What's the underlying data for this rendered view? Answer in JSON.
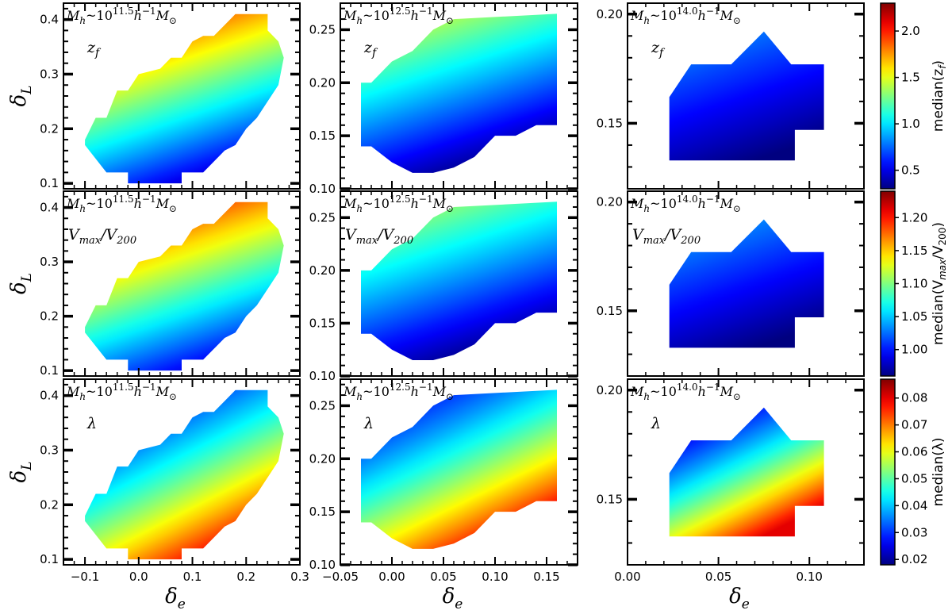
{
  "chart_data": {
    "type": "heatmap",
    "grid_rows": 3,
    "grid_cols": 3,
    "columns": [
      {
        "mass_label_prefix": "M",
        "mass_label_sub": "h",
        "mass_label_mid": "~10",
        "mass_label_exp": "11.5",
        "mass_label_unit": "h",
        "mass_label_unit_exp": "−1",
        "mass_label_sun": "M",
        "mass_label_sun_sub": "⊙",
        "xlim": [
          -0.14,
          0.3
        ],
        "ylim": [
          0.09,
          0.43
        ],
        "xticks": [
          -0.1,
          0.0,
          0.1,
          0.2,
          0.3
        ],
        "xtick_labels": [
          "−0.1",
          "0.0",
          "0.1",
          "0.2",
          "0.3"
        ],
        "yticks": [
          0.1,
          0.2,
          0.3,
          0.4
        ],
        "ytick_labels": [
          "0.1",
          "0.2",
          "0.3",
          "0.4"
        ],
        "region": [
          [
            -0.1,
            0.18
          ],
          [
            -0.08,
            0.22
          ],
          [
            -0.06,
            0.22
          ],
          [
            -0.04,
            0.27
          ],
          [
            -0.02,
            0.27
          ],
          [
            0.0,
            0.3
          ],
          [
            0.04,
            0.31
          ],
          [
            0.06,
            0.33
          ],
          [
            0.08,
            0.33
          ],
          [
            0.1,
            0.36
          ],
          [
            0.12,
            0.37
          ],
          [
            0.14,
            0.37
          ],
          [
            0.16,
            0.39
          ],
          [
            0.18,
            0.41
          ],
          [
            0.24,
            0.41
          ],
          [
            0.24,
            0.38
          ],
          [
            0.26,
            0.36
          ],
          [
            0.27,
            0.33
          ],
          [
            0.26,
            0.28
          ],
          [
            0.22,
            0.22
          ],
          [
            0.2,
            0.2
          ],
          [
            0.18,
            0.17
          ],
          [
            0.16,
            0.16
          ],
          [
            0.14,
            0.14
          ],
          [
            0.12,
            0.12
          ],
          [
            0.1,
            0.12
          ],
          [
            0.08,
            0.12
          ],
          [
            0.08,
            0.1
          ],
          [
            -0.02,
            0.1
          ],
          [
            -0.02,
            0.12
          ],
          [
            -0.06,
            0.12
          ],
          [
            -0.1,
            0.17
          ]
        ]
      },
      {
        "mass_label_prefix": "M",
        "mass_label_sub": "h",
        "mass_label_mid": "~10",
        "mass_label_exp": "12.5",
        "mass_label_unit": "h",
        "mass_label_unit_exp": "−1",
        "mass_label_sun": "M",
        "mass_label_sun_sub": "⊙",
        "xlim": [
          -0.05,
          0.18
        ],
        "ylim": [
          0.1,
          0.275
        ],
        "xticks": [
          -0.05,
          0.0,
          0.05,
          0.1,
          0.15
        ],
        "xtick_labels": [
          "−0.05",
          "0.00",
          "0.05",
          "0.10",
          "0.15"
        ],
        "yticks": [
          0.1,
          0.15,
          0.2,
          0.25
        ],
        "ytick_labels": [
          "0.10",
          "0.15",
          "0.20",
          "0.25"
        ],
        "region": [
          [
            -0.03,
            0.2
          ],
          [
            -0.02,
            0.2
          ],
          [
            0.0,
            0.22
          ],
          [
            0.02,
            0.23
          ],
          [
            0.04,
            0.25
          ],
          [
            0.06,
            0.26
          ],
          [
            0.16,
            0.265
          ],
          [
            0.16,
            0.16
          ],
          [
            0.14,
            0.16
          ],
          [
            0.12,
            0.15
          ],
          [
            0.1,
            0.15
          ],
          [
            0.08,
            0.13
          ],
          [
            0.06,
            0.12
          ],
          [
            0.04,
            0.115
          ],
          [
            0.02,
            0.115
          ],
          [
            0.0,
            0.125
          ],
          [
            -0.02,
            0.14
          ],
          [
            -0.03,
            0.14
          ]
        ]
      },
      {
        "mass_label_prefix": "M",
        "mass_label_sub": "h",
        "mass_label_mid": "~10",
        "mass_label_exp": "14.0",
        "mass_label_unit": "h",
        "mass_label_unit_exp": "−1",
        "mass_label_sun": "M",
        "mass_label_sun_sub": "⊙",
        "xlim": [
          0.0,
          0.13
        ],
        "ylim": [
          0.12,
          0.205
        ],
        "xticks": [
          0.0,
          0.05,
          0.1
        ],
        "xtick_labels": [
          "0.00",
          "0.05",
          "0.10"
        ],
        "yticks": [
          0.15,
          0.2
        ],
        "ytick_labels": [
          "0.15",
          "0.20"
        ],
        "region": [
          [
            0.023,
            0.162
          ],
          [
            0.035,
            0.177
          ],
          [
            0.057,
            0.177
          ],
          [
            0.075,
            0.192
          ],
          [
            0.09,
            0.177
          ],
          [
            0.108,
            0.177
          ],
          [
            0.108,
            0.147
          ],
          [
            0.092,
            0.147
          ],
          [
            0.092,
            0.133
          ],
          [
            0.023,
            0.133
          ]
        ]
      }
    ],
    "rows": [
      {
        "quantity_main": "z",
        "quantity_sub": "f",
        "colorbar_label": "median(z",
        "colorbar_label_sub": "f",
        "colorbar_label_end": ")",
        "colorbar_range": [
          0.3,
          2.3
        ],
        "colorbar_ticks": [
          0.5,
          1.0,
          1.5,
          2.0
        ],
        "colorbar_tick_labels": [
          "0.5",
          "1.0",
          "1.5",
          "2.0"
        ],
        "gradient": [
          {
            "t0": 0.92,
            "a": -2.2,
            "b": 3.9
          },
          {
            "t0": 0.62,
            "a": -2.0,
            "b": 3.6
          },
          {
            "t0": 0.28,
            "a": -2.0,
            "b": 3.2
          }
        ]
      },
      {
        "quantity_main": "V",
        "quantity_sub": "max",
        "quantity_main2": "/V",
        "quantity_sub2": "200",
        "colorbar_label": "median(V",
        "colorbar_label_sub": "max",
        "colorbar_label_mid": "/V",
        "colorbar_label_sub2": "200",
        "colorbar_label_end": ")",
        "colorbar_range": [
          0.96,
          1.24
        ],
        "colorbar_ticks": [
          1.0,
          1.05,
          1.1,
          1.15,
          1.2
        ],
        "colorbar_tick_labels": [
          "1.00",
          "1.05",
          "1.10",
          "1.15",
          "1.20"
        ],
        "gradient": [
          {
            "t0": 0.95,
            "a": -2.2,
            "b": 4.2
          },
          {
            "t0": 0.58,
            "a": -2.0,
            "b": 3.6
          },
          {
            "t0": 0.3,
            "a": -2.0,
            "b": 3.2
          }
        ]
      },
      {
        "quantity_main": "λ",
        "colorbar_label": "median(λ)",
        "colorbar_range": [
          0.018,
          0.087
        ],
        "colorbar_ticks": [
          0.02,
          0.03,
          0.04,
          0.05,
          0.06,
          0.07,
          0.08
        ],
        "colorbar_tick_labels": [
          "0.02",
          "0.03",
          "0.04",
          "0.05",
          "0.06",
          "0.07",
          "0.08"
        ],
        "gradient": [
          {
            "t0": 0.05,
            "a": 2.4,
            "b": -3.4
          },
          {
            "t0": 0.08,
            "a": 2.3,
            "b": -3.0
          },
          {
            "t0": 0.02,
            "a": 2.0,
            "b": -2.4
          }
        ]
      }
    ],
    "xlabel": "δ",
    "xlabel_sub": "e",
    "ylabel": "δ",
    "ylabel_sub": "L",
    "colormap": "jet",
    "grid": false
  }
}
